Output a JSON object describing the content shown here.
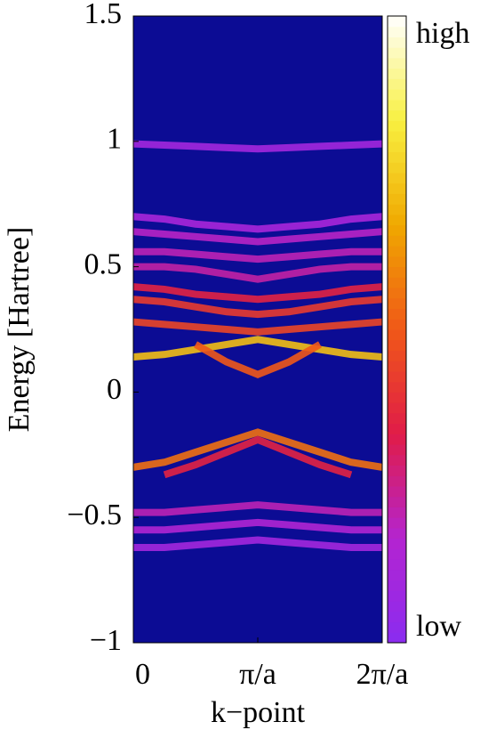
{
  "chart_data": {
    "type": "spectral",
    "ylabel": "Energy [Hartree]",
    "xlabel": "k−point",
    "x": [
      0,
      0.25,
      0.5,
      0.75,
      1,
      1.25,
      1.5,
      1.75,
      2
    ],
    "xlim": [
      0,
      2
    ],
    "xticks": [
      0,
      {
        "value": 1,
        "label": "π/a"
      },
      {
        "value": 2,
        "label": "2π/a"
      }
    ],
    "ylim": [
      -1,
      1.5
    ],
    "yticks": [
      {
        "value": -1,
        "label": "−1"
      },
      {
        "value": -0.5,
        "label": "−0.5"
      },
      0,
      0.5,
      1,
      1.5
    ],
    "background_color": "#0c0c94",
    "colormap": [
      "#8a2cf0",
      "#b424d0",
      "#e01c48",
      "#f05818",
      "#f0a800",
      "#f8f040",
      "#ffffff"
    ],
    "zlim": [
      0,
      1
    ],
    "colorbar_labels": [
      "low",
      "high"
    ],
    "series": [
      {
        "values": [
          0.99,
          0.985,
          0.98,
          0.975,
          0.97,
          0.975,
          0.98,
          0.985,
          0.99
        ],
        "intensity": 0.1
      },
      {
        "values": [
          0.7,
          0.69,
          0.67,
          0.66,
          0.65,
          0.66,
          0.67,
          0.69,
          0.7
        ],
        "intensity": 0.12
      },
      {
        "values": [
          0.64,
          0.63,
          0.62,
          0.61,
          0.6,
          0.61,
          0.62,
          0.63,
          0.64
        ],
        "intensity": 0.18
      },
      {
        "values": [
          0.56,
          0.56,
          0.55,
          0.54,
          0.53,
          0.54,
          0.55,
          0.56,
          0.56
        ],
        "intensity": 0.2
      },
      {
        "values": [
          0.5,
          0.5,
          0.49,
          0.47,
          0.45,
          0.47,
          0.49,
          0.5,
          0.5
        ],
        "intensity": 0.22
      },
      {
        "values": [
          0.42,
          0.41,
          0.39,
          0.38,
          0.37,
          0.38,
          0.39,
          0.41,
          0.42
        ],
        "intensity": 0.35
      },
      {
        "values": [
          0.37,
          0.36,
          0.34,
          0.32,
          0.31,
          0.32,
          0.34,
          0.36,
          0.37
        ],
        "intensity": 0.42
      },
      {
        "values": [
          0.28,
          0.27,
          0.26,
          0.25,
          0.24,
          0.25,
          0.26,
          0.27,
          0.28
        ],
        "intensity": 0.45
      },
      {
        "values": [
          0.14,
          0.15,
          0.17,
          0.19,
          0.21,
          0.19,
          0.17,
          0.15,
          0.14
        ],
        "intensity": 0.72
      },
      {
        "values": [
          null,
          null,
          0.19,
          0.12,
          0.07,
          0.12,
          0.19,
          null,
          null
        ],
        "intensity": 0.5
      },
      {
        "values": [
          -0.3,
          -0.28,
          -0.24,
          -0.2,
          -0.16,
          -0.2,
          -0.24,
          -0.28,
          -0.3
        ],
        "intensity": 0.55
      },
      {
        "values": [
          null,
          -0.33,
          -0.29,
          -0.24,
          -0.19,
          -0.24,
          -0.29,
          -0.33,
          null
        ],
        "intensity": 0.35
      },
      {
        "values": [
          -0.48,
          -0.48,
          -0.47,
          -0.46,
          -0.45,
          -0.46,
          -0.47,
          -0.48,
          -0.48
        ],
        "intensity": 0.2
      },
      {
        "values": [
          -0.55,
          -0.55,
          -0.54,
          -0.53,
          -0.52,
          -0.53,
          -0.54,
          -0.55,
          -0.55
        ],
        "intensity": 0.15
      },
      {
        "values": [
          -0.62,
          -0.62,
          -0.61,
          -0.6,
          -0.59,
          -0.6,
          -0.61,
          -0.62,
          -0.62
        ],
        "intensity": 0.1
      }
    ]
  }
}
